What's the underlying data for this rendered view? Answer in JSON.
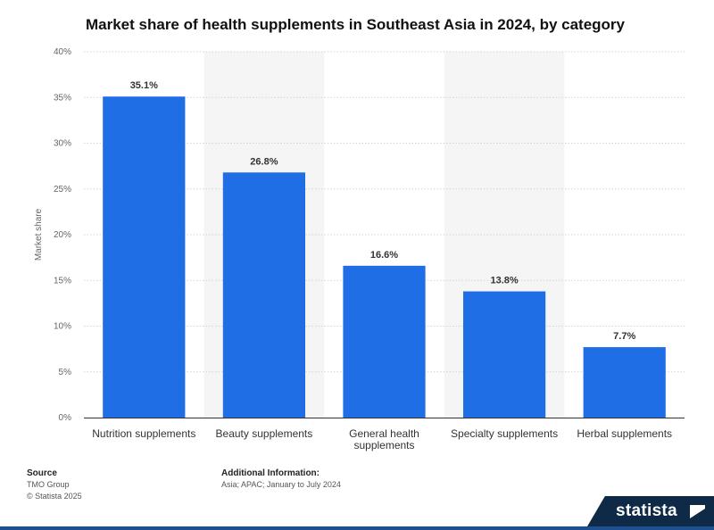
{
  "chart_data": {
    "type": "bar",
    "title": "Market share of health supplements in Southeast Asia in 2024, by category",
    "ylabel": "Market share",
    "xlabel": "",
    "ylim": [
      0,
      40
    ],
    "yticks": [
      0,
      5,
      10,
      15,
      20,
      25,
      30,
      35,
      40
    ],
    "ytick_labels": [
      "0%",
      "5%",
      "10%",
      "15%",
      "20%",
      "25%",
      "30%",
      "35%",
      "40%"
    ],
    "categories": [
      [
        "Nutrition supplements"
      ],
      [
        "Beauty supplements"
      ],
      [
        "General health",
        "supplements"
      ],
      [
        "Specialty supplements"
      ],
      [
        "Herbal supplements"
      ]
    ],
    "values": [
      35.1,
      26.8,
      16.6,
      13.8,
      7.7
    ],
    "value_labels": [
      "35.1%",
      "26.8%",
      "16.6%",
      "13.8%",
      "7.7%"
    ],
    "grid": true,
    "bar_color": "#1f6ee6"
  },
  "footer": {
    "source_heading": "Source",
    "source_name": "TMO Group",
    "copyright": "© Statista 2025",
    "info_heading": "Additional Information:",
    "info_text": "Asia; APAC; January to July 2024"
  },
  "brand": {
    "name": "statista",
    "icon": "statista-logo-icon"
  }
}
